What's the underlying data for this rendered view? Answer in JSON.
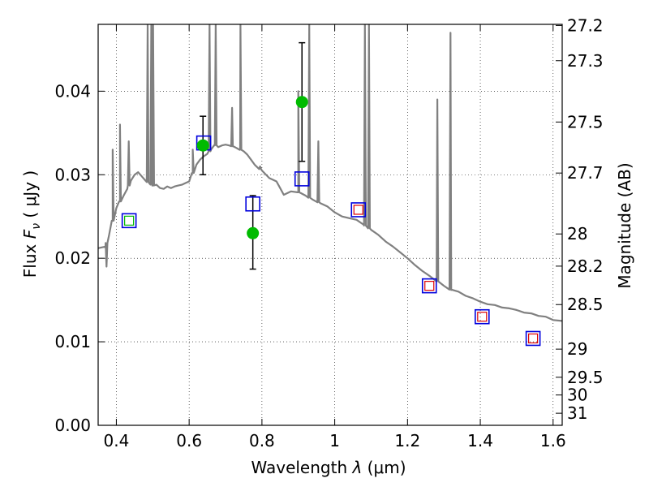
{
  "chart_data": {
    "type": "scatter",
    "xlabel_pre": "Wavelength  ",
    "xlabel_sym": "λ",
    "xlabel_unit": " (μm)",
    "ylabel_pre": "Flux  ",
    "ylabel_sym": "F",
    "ylabel_sub": "ν",
    "ylabel_unit": "  ( μJy )",
    "ylabel_right": "Magnitude (AB)",
    "xlim": [
      0.35,
      1.625
    ],
    "ylim": [
      0.0,
      0.048
    ],
    "x_ticks": [
      {
        "v": 0.4,
        "label": "0.4"
      },
      {
        "v": 0.6,
        "label": "0.6"
      },
      {
        "v": 0.8,
        "label": "0.8"
      },
      {
        "v": 1.0,
        "label": "1"
      },
      {
        "v": 1.2,
        "label": "1.2"
      },
      {
        "v": 1.4,
        "label": "1.4"
      },
      {
        "v": 1.6,
        "label": "1.6"
      }
    ],
    "y_ticks": [
      {
        "v": 0.0,
        "label": "0.00"
      },
      {
        "v": 0.01,
        "label": "0.01"
      },
      {
        "v": 0.02,
        "label": "0.02"
      },
      {
        "v": 0.03,
        "label": "0.03"
      },
      {
        "v": 0.04,
        "label": "0.04"
      }
    ],
    "right_ticks": [
      "27.2",
      "27.3",
      "27.5",
      "27.7",
      "28",
      "28.2",
      "28.5",
      "29",
      "29.5",
      "30",
      "31"
    ],
    "grid": true,
    "model_spectrum": {
      "color": "#808080",
      "points": [
        [
          0.35,
          0.0212
        ],
        [
          0.37,
          0.0214
        ],
        [
          0.38,
          0.0228
        ],
        [
          0.39,
          0.0245
        ],
        [
          0.4,
          0.026
        ],
        [
          0.41,
          0.0268
        ],
        [
          0.42,
          0.0275
        ],
        [
          0.43,
          0.0283
        ],
        [
          0.44,
          0.0293
        ],
        [
          0.45,
          0.03
        ],
        [
          0.46,
          0.0303
        ],
        [
          0.47,
          0.0298
        ],
        [
          0.48,
          0.0293
        ],
        [
          0.49,
          0.029
        ],
        [
          0.5,
          0.0287
        ],
        [
          0.51,
          0.0288
        ],
        [
          0.52,
          0.0284
        ],
        [
          0.53,
          0.0283
        ],
        [
          0.54,
          0.0286
        ],
        [
          0.55,
          0.0284
        ],
        [
          0.56,
          0.0286
        ],
        [
          0.57,
          0.0287
        ],
        [
          0.58,
          0.0288
        ],
        [
          0.59,
          0.029
        ],
        [
          0.6,
          0.0292
        ],
        [
          0.61,
          0.0302
        ],
        [
          0.62,
          0.0312
        ],
        [
          0.63,
          0.0318
        ],
        [
          0.64,
          0.0322
        ],
        [
          0.65,
          0.0325
        ],
        [
          0.66,
          0.033
        ],
        [
          0.67,
          0.0336
        ],
        [
          0.68,
          0.0333
        ],
        [
          0.69,
          0.0335
        ],
        [
          0.7,
          0.0336
        ],
        [
          0.71,
          0.0335
        ],
        [
          0.72,
          0.0334
        ],
        [
          0.73,
          0.0332
        ],
        [
          0.74,
          0.033
        ],
        [
          0.75,
          0.0328
        ],
        [
          0.76,
          0.0324
        ],
        [
          0.77,
          0.0318
        ],
        [
          0.78,
          0.0312
        ],
        [
          0.8,
          0.0305
        ],
        [
          0.82,
          0.0296
        ],
        [
          0.84,
          0.0292
        ],
        [
          0.85,
          0.0284
        ],
        [
          0.86,
          0.0276
        ],
        [
          0.88,
          0.028
        ],
        [
          0.9,
          0.0279
        ],
        [
          0.92,
          0.0275
        ],
        [
          0.94,
          0.027
        ],
        [
          0.96,
          0.0266
        ],
        [
          0.98,
          0.0262
        ],
        [
          1.0,
          0.0255
        ],
        [
          1.02,
          0.025
        ],
        [
          1.04,
          0.0248
        ],
        [
          1.06,
          0.0246
        ],
        [
          1.08,
          0.024
        ],
        [
          1.1,
          0.0234
        ],
        [
          1.12,
          0.0228
        ],
        [
          1.14,
          0.022
        ],
        [
          1.16,
          0.0214
        ],
        [
          1.18,
          0.0207
        ],
        [
          1.2,
          0.02
        ],
        [
          1.22,
          0.0192
        ],
        [
          1.24,
          0.0185
        ],
        [
          1.26,
          0.0179
        ],
        [
          1.28,
          0.0173
        ],
        [
          1.3,
          0.0167
        ],
        [
          1.32,
          0.0162
        ],
        [
          1.34,
          0.016
        ],
        [
          1.36,
          0.0155
        ],
        [
          1.38,
          0.0152
        ],
        [
          1.4,
          0.0148
        ],
        [
          1.42,
          0.0145
        ],
        [
          1.44,
          0.0144
        ],
        [
          1.46,
          0.0141
        ],
        [
          1.48,
          0.014
        ],
        [
          1.5,
          0.0138
        ],
        [
          1.52,
          0.0135
        ],
        [
          1.54,
          0.0134
        ],
        [
          1.56,
          0.0131
        ],
        [
          1.58,
          0.013
        ],
        [
          1.6,
          0.0126
        ],
        [
          1.625,
          0.0125
        ]
      ],
      "emission_lines": [
        [
          0.373,
          0.019
        ],
        [
          0.39,
          0.033
        ],
        [
          0.41,
          0.036
        ],
        [
          0.434,
          0.034
        ],
        [
          0.486,
          0.048
        ],
        [
          0.496,
          0.048
        ],
        [
          0.501,
          0.048
        ],
        [
          0.61,
          0.033
        ],
        [
          0.656,
          0.048
        ],
        [
          0.673,
          0.048
        ],
        [
          0.718,
          0.038
        ],
        [
          0.741,
          0.048
        ],
        [
          0.795,
          0.031
        ],
        [
          0.9,
          0.04
        ],
        [
          0.93,
          0.048
        ],
        [
          0.955,
          0.034
        ],
        [
          1.083,
          0.048
        ],
        [
          1.094,
          0.048
        ],
        [
          1.282,
          0.039
        ],
        [
          1.318,
          0.047
        ]
      ]
    },
    "series": [
      {
        "name": "",
        "marker": "circle",
        "color": "#00bb00",
        "points": [
          {
            "x": 0.638,
            "y": 0.0335,
            "err": [
              0.03,
              0.037
            ]
          },
          {
            "x": 0.775,
            "y": 0.023,
            "err": [
              0.0187,
              0.0275
            ]
          },
          {
            "x": 0.91,
            "y": 0.0387,
            "err": [
              0.0316,
              0.0458
            ]
          }
        ]
      },
      {
        "name": "",
        "marker": "square",
        "color": "#0000dd",
        "points": [
          {
            "x": 0.435,
            "y": 0.0245
          },
          {
            "x": 0.64,
            "y": 0.0338
          },
          {
            "x": 0.775,
            "y": 0.0265
          },
          {
            "x": 0.91,
            "y": 0.0295
          },
          {
            "x": 1.065,
            "y": 0.0258
          },
          {
            "x": 1.26,
            "y": 0.0167
          },
          {
            "x": 1.405,
            "y": 0.013
          },
          {
            "x": 1.545,
            "y": 0.0104
          }
        ]
      },
      {
        "name": "",
        "marker": "square-small",
        "color": "#00bb00",
        "points": [
          {
            "x": 0.435,
            "y": 0.0245
          }
        ]
      },
      {
        "name": "",
        "marker": "square-small",
        "color": "#dd0000",
        "points": [
          {
            "x": 1.065,
            "y": 0.0258
          },
          {
            "x": 1.26,
            "y": 0.0167
          },
          {
            "x": 1.405,
            "y": 0.013
          },
          {
            "x": 1.545,
            "y": 0.0104
          }
        ]
      }
    ]
  }
}
